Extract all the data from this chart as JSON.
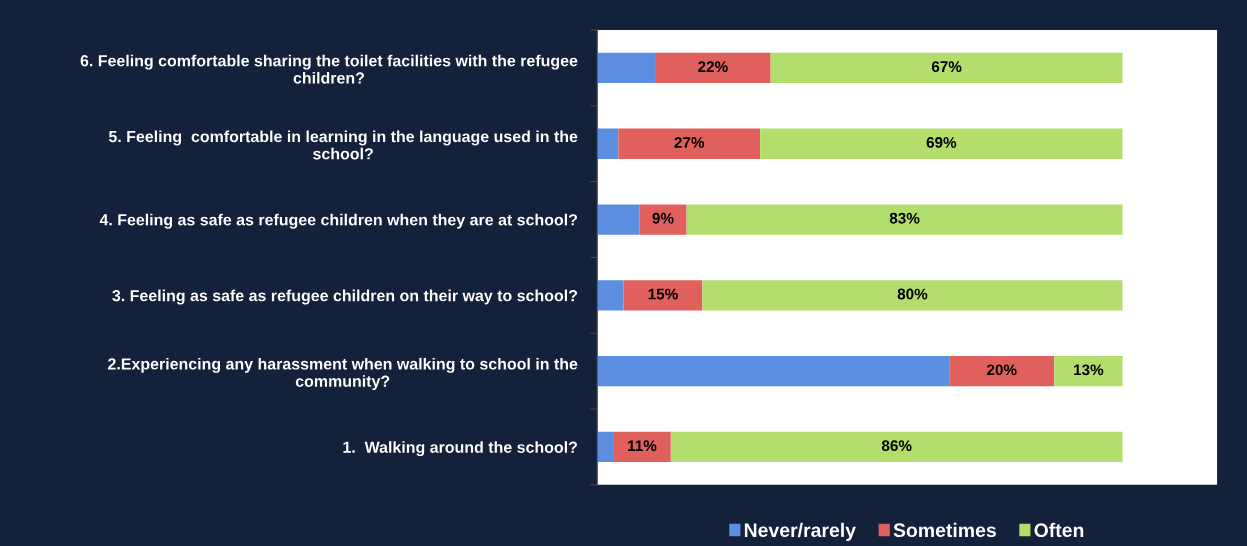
{
  "chart_data": {
    "type": "bar",
    "orientation": "horizontal",
    "stacked": true,
    "categories": [
      "6. Feeling comfortable sharing the toilet facilities with the refugee\nchildren?",
      "5. Feeling  comfortable in learning in the language used in the\nschool?",
      "4. Feeling as safe as refugee children when they are at school?",
      "3. Feeling as safe as refugee children on their way to school?",
      "2.Experiencing any harassment when walking to school in the\ncommunity?",
      "1.  Walking around the school?"
    ],
    "series": [
      {
        "name": "Never/rarely",
        "color": "#5b8ee0",
        "values": [
          11,
          4,
          8,
          5,
          67,
          3
        ]
      },
      {
        "name": "Sometimes",
        "color": "#e0605e",
        "values": [
          22,
          27,
          9,
          15,
          20,
          11
        ],
        "value_labels": [
          "22%",
          "27%",
          "9%",
          "15%",
          "20%",
          "11%"
        ]
      },
      {
        "name": "Often",
        "color": "#b3de6c",
        "values": [
          67,
          69,
          83,
          80,
          13,
          86
        ],
        "value_labels": [
          "67%",
          "69%",
          "83%",
          "80%",
          "13%",
          "86%"
        ]
      }
    ],
    "xlim": [
      0,
      118
    ],
    "tick_labels": "y",
    "grid": false,
    "legend": "bottom"
  }
}
